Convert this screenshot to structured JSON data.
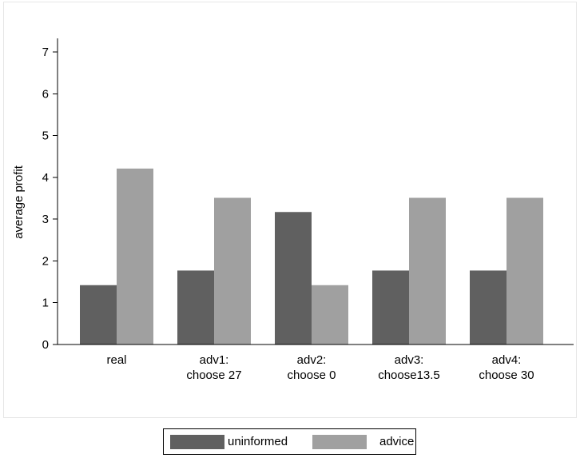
{
  "chart_data": {
    "type": "bar",
    "title": "",
    "xlabel": "",
    "ylabel": "average profit",
    "ylim": [
      0,
      7
    ],
    "yticks": [
      "0",
      "1",
      "2",
      "3",
      "4",
      "5",
      "6",
      "7"
    ],
    "categories": [
      [
        "real"
      ],
      [
        "adv1:",
        "choose 27"
      ],
      [
        "adv2:",
        "choose 0"
      ],
      [
        "adv3:",
        "choose13.5"
      ],
      [
        "adv4:",
        "choose 30"
      ]
    ],
    "series": [
      {
        "name": "uninformed",
        "color": "#606060",
        "values": [
          1.42,
          1.77,
          3.17,
          1.77,
          1.77
        ]
      },
      {
        "name": "advice",
        "color": "#a0a0a0",
        "values": [
          4.21,
          3.51,
          1.42,
          3.51,
          3.51
        ]
      }
    ],
    "grid": false,
    "legend_position": "bottom"
  }
}
